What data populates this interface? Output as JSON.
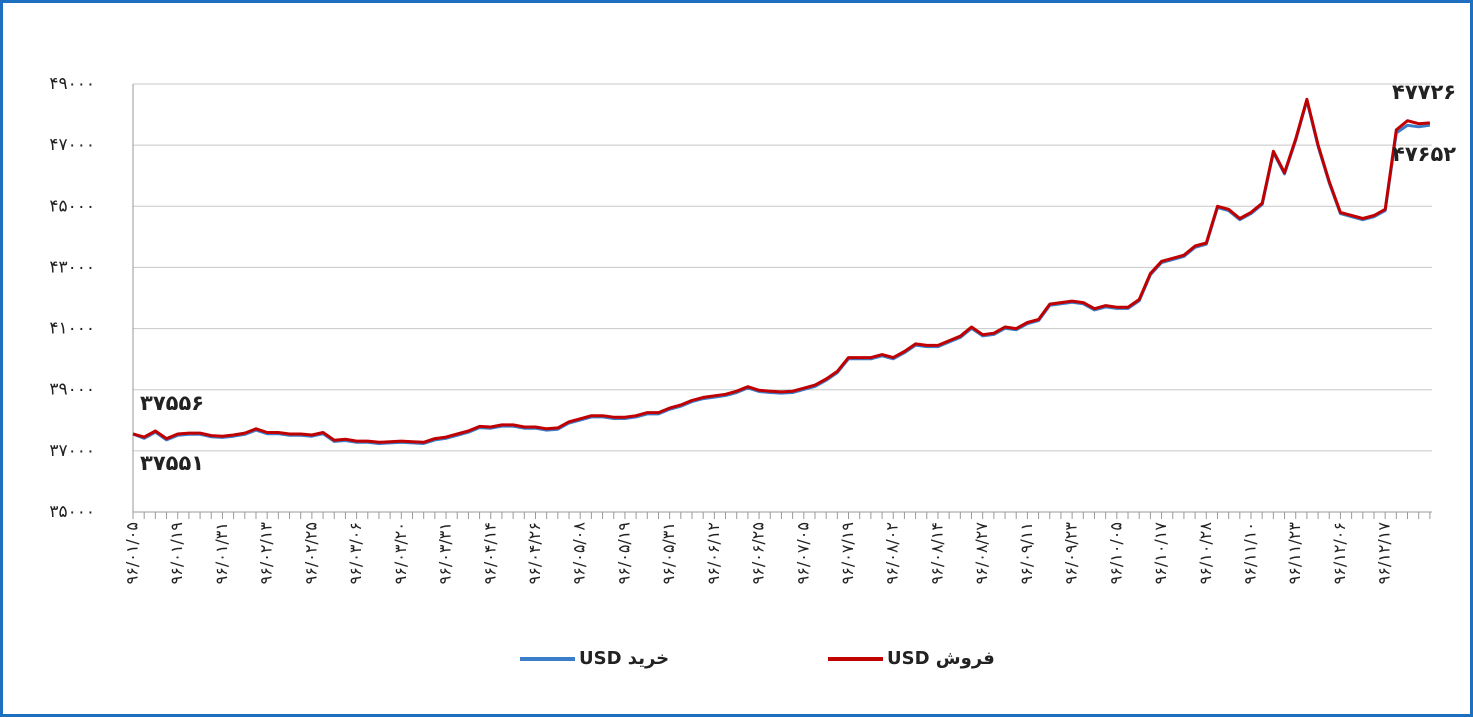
{
  "chart_data": {
    "type": "line",
    "categories": [
      "۹۶/۰۱/۰۵",
      null,
      null,
      null,
      "۹۶/۰۱/۱۹",
      null,
      null,
      null,
      "۹۶/۰۱/۳۱",
      null,
      null,
      null,
      "۹۶/۰۲/۱۳",
      null,
      null,
      null,
      "۹۶/۰۲/۲۵",
      null,
      null,
      null,
      "۹۶/۰۳/۰۶",
      null,
      null,
      null,
      "۹۶/۰۳/۲۰",
      null,
      null,
      null,
      "۹۶/۰۳/۳۱",
      null,
      null,
      null,
      "۹۶/۰۴/۱۴",
      null,
      null,
      null,
      "۹۶/۰۴/۲۶",
      null,
      null,
      null,
      "۹۶/۰۵/۰۸",
      null,
      null,
      null,
      "۹۶/۰۵/۱۹",
      null,
      null,
      null,
      "۹۶/۰۵/۳۱",
      null,
      null,
      null,
      "۹۶/۰۶/۱۲",
      null,
      null,
      null,
      "۹۶/۰۶/۲۵",
      null,
      null,
      null,
      "۹۶/۰۷/۰۵",
      null,
      null,
      null,
      "۹۶/۰۷/۱۹",
      null,
      null,
      null,
      "۹۶/۰۸/۰۲",
      null,
      null,
      null,
      "۹۶/۰۸/۱۴",
      null,
      null,
      null,
      "۹۶/۰۸/۲۷",
      null,
      null,
      null,
      "۹۶/۰۹/۱۱",
      null,
      null,
      null,
      "۹۶/۰۹/۲۳",
      null,
      null,
      null,
      "۹۶/۱۰/۰۵",
      null,
      null,
      null,
      "۹۶/۱۰/۱۷",
      null,
      null,
      null,
      "۹۶/۱۰/۲۸",
      null,
      null,
      null,
      "۹۶/۱۱/۱۰",
      null,
      null,
      null,
      "۹۶/۱۱/۲۳",
      null,
      null,
      null,
      "۹۶/۱۲/۰۶",
      null,
      null,
      null,
      "۹۶/۱۲/۱۷",
      null,
      null,
      null,
      null
    ],
    "series": [
      {
        "name": "خرید USD",
        "color": "#3a7dc9",
        "values": [
          37551,
          37410,
          37610,
          37360,
          37510,
          37540,
          37540,
          37460,
          37440,
          37480,
          37540,
          37680,
          37560,
          37560,
          37510,
          37510,
          37480,
          37560,
          37310,
          37340,
          37280,
          37280,
          37240,
          37260,
          37280,
          37260,
          37240,
          37360,
          37410,
          37510,
          37610,
          37760,
          37740,
          37810,
          37810,
          37740,
          37740,
          37680,
          37710,
          37910,
          38010,
          38110,
          38110,
          38060,
          38060,
          38110,
          38210,
          38210,
          38360,
          38460,
          38610,
          38710,
          38760,
          38810,
          38910,
          39060,
          38940,
          38910,
          38890,
          38910,
          39010,
          39110,
          39310,
          39560,
          40010,
          40010,
          40010,
          40110,
          40010,
          40210,
          40460,
          40410,
          40410,
          40560,
          40710,
          41010,
          40760,
          40810,
          41010,
          40960,
          41160,
          41260,
          41760,
          41810,
          41860,
          41810,
          41610,
          41710,
          41660,
          41660,
          41910,
          42760,
          43160,
          43260,
          43360,
          43660,
          43760,
          44960,
          44860,
          44560,
          44760,
          45060,
          46760,
          46060,
          47160,
          48460,
          46960,
          45760,
          44760,
          44660,
          44560,
          44660,
          44860,
          47400,
          47650,
          47600,
          47652
        ],
        "value_labels": [
          "۳۷۵۵۱",
          null,
          null,
          null,
          null,
          null,
          null,
          null,
          null,
          null,
          null,
          null,
          null,
          null,
          null,
          null,
          null,
          null,
          null,
          null,
          null,
          null,
          null,
          null,
          null,
          null,
          null,
          null,
          null,
          null,
          null,
          null,
          null,
          null,
          null,
          null,
          null,
          null,
          null,
          null,
          null,
          null,
          null,
          null,
          null,
          null,
          null,
          null,
          null,
          null,
          null,
          null,
          null,
          null,
          null,
          null,
          null,
          null,
          null,
          null,
          null,
          null,
          null,
          null,
          null,
          null,
          null,
          null,
          null,
          null,
          null,
          null,
          null,
          null,
          null,
          null,
          null,
          null,
          null,
          null,
          null,
          null,
          null,
          null,
          null,
          null,
          null,
          null,
          null,
          null,
          null,
          null,
          null,
          null,
          null,
          null,
          null,
          null,
          null,
          null,
          null,
          null,
          null,
          null,
          null,
          null,
          null,
          null,
          null,
          null,
          null,
          null,
          null,
          null,
          null,
          null,
          "۴۷۶۵۲"
        ]
      },
      {
        "name": "فروش USD",
        "color": "#c00000",
        "values": [
          37556,
          37450,
          37650,
          37400,
          37550,
          37580,
          37580,
          37500,
          37480,
          37520,
          37580,
          37720,
          37600,
          37600,
          37550,
          37550,
          37520,
          37600,
          37350,
          37380,
          37320,
          37320,
          37280,
          37300,
          37320,
          37300,
          37280,
          37400,
          37450,
          37550,
          37650,
          37800,
          37780,
          37850,
          37850,
          37780,
          37780,
          37720,
          37750,
          37950,
          38050,
          38150,
          38150,
          38100,
          38100,
          38150,
          38250,
          38250,
          38400,
          38500,
          38650,
          38750,
          38800,
          38850,
          38950,
          39100,
          38980,
          38950,
          38930,
          38950,
          39050,
          39150,
          39350,
          39600,
          40050,
          40050,
          40050,
          40150,
          40050,
          40250,
          40500,
          40450,
          40450,
          40600,
          40750,
          41050,
          40800,
          40850,
          41050,
          41000,
          41200,
          41300,
          41800,
          41850,
          41900,
          41850,
          41650,
          41750,
          41700,
          41700,
          41950,
          42800,
          43200,
          43300,
          43400,
          43700,
          43800,
          45000,
          44900,
          44600,
          44800,
          45100,
          46800,
          46100,
          47200,
          48500,
          47000,
          45800,
          44800,
          44700,
          44600,
          44700,
          44900,
          47500,
          47800,
          47700,
          47726
        ],
        "value_labels": [
          "۳۷۵۵۶",
          null,
          null,
          null,
          null,
          null,
          null,
          null,
          null,
          null,
          null,
          null,
          null,
          null,
          null,
          null,
          null,
          null,
          null,
          null,
          null,
          null,
          null,
          null,
          null,
          null,
          null,
          null,
          null,
          null,
          null,
          null,
          null,
          null,
          null,
          null,
          null,
          null,
          null,
          null,
          null,
          null,
          null,
          null,
          null,
          null,
          null,
          null,
          null,
          null,
          null,
          null,
          null,
          null,
          null,
          null,
          null,
          null,
          null,
          null,
          null,
          null,
          null,
          null,
          null,
          null,
          null,
          null,
          null,
          null,
          null,
          null,
          null,
          null,
          null,
          null,
          null,
          null,
          null,
          null,
          null,
          null,
          null,
          null,
          null,
          null,
          null,
          null,
          null,
          null,
          null,
          null,
          null,
          null,
          null,
          null,
          null,
          null,
          null,
          null,
          null,
          null,
          null,
          null,
          null,
          null,
          null,
          null,
          null,
          null,
          null,
          null,
          null,
          null,
          null,
          null,
          "۴۷۷۲۶"
        ]
      }
    ],
    "ylim": [
      35000,
      49000
    ],
    "yticks": [
      {
        "value": 35000,
        "label": "۳۵۰۰۰"
      },
      {
        "value": 37000,
        "label": "۳۷۰۰۰"
      },
      {
        "value": 39000,
        "label": "۳۹۰۰۰"
      },
      {
        "value": 41000,
        "label": "۴۱۰۰۰"
      },
      {
        "value": 43000,
        "label": "۴۳۰۰۰"
      },
      {
        "value": 45000,
        "label": "۴۵۰۰۰"
      },
      {
        "value": 47000,
        "label": "۴۷۰۰۰"
      },
      {
        "value": 49000,
        "label": "۴۹۰۰۰"
      }
    ],
    "grid": true
  }
}
